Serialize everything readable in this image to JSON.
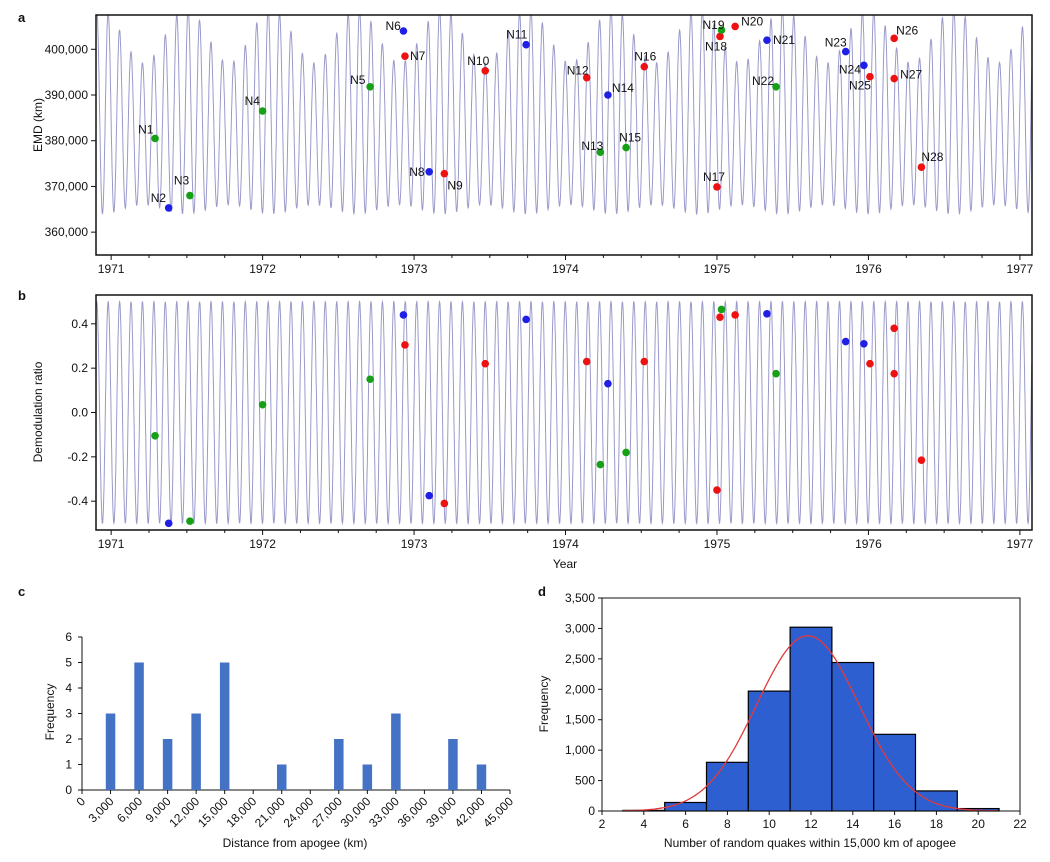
{
  "panels": {
    "a": "a",
    "b": "b",
    "c": "c",
    "d": "d"
  },
  "colors": {
    "wave": "#9a9acb",
    "blue": "#1f1fe6",
    "red": "#ee1111",
    "green": "#16a016",
    "bar": "#4472c4",
    "bar_d": "#2e5fd0",
    "fit": "#e23a3a"
  },
  "chart_data": [
    {
      "id": "a",
      "type": "scatter",
      "background": "sinusoid",
      "ylabel": "EMD (km)",
      "xlabel": "",
      "xlim": [
        1970.9,
        1977.08
      ],
      "ylim": [
        355000,
        407500
      ],
      "xticks": [
        1971,
        1972,
        1973,
        1974,
        1975,
        1976,
        1977
      ],
      "yticks": [
        360000,
        370000,
        380000,
        390000,
        400000
      ],
      "ytick_labels": [
        "360,000",
        "370,000",
        "380,000",
        "390,000",
        "400,000"
      ],
      "points": [
        {
          "label": "N1",
          "x": 1971.29,
          "y": 380500,
          "color": "green"
        },
        {
          "label": "N2",
          "x": 1971.38,
          "y": 365300,
          "color": "blue"
        },
        {
          "label": "N3",
          "x": 1971.52,
          "y": 368000,
          "color": "green"
        },
        {
          "label": "N4",
          "x": 1972.0,
          "y": 386500,
          "color": "green"
        },
        {
          "label": "N5",
          "x": 1972.71,
          "y": 391800,
          "color": "green"
        },
        {
          "label": "N6",
          "x": 1972.93,
          "y": 404000,
          "color": "blue"
        },
        {
          "label": "N7",
          "x": 1972.94,
          "y": 398500,
          "color": "red"
        },
        {
          "label": "N8",
          "x": 1973.1,
          "y": 373200,
          "color": "blue"
        },
        {
          "label": "N9",
          "x": 1973.2,
          "y": 372800,
          "color": "red"
        },
        {
          "label": "N10",
          "x": 1973.47,
          "y": 395300,
          "color": "red"
        },
        {
          "label": "N11",
          "x": 1973.74,
          "y": 401000,
          "color": "blue"
        },
        {
          "label": "N12",
          "x": 1974.14,
          "y": 393800,
          "color": "red"
        },
        {
          "label": "N13",
          "x": 1974.23,
          "y": 377500,
          "color": "green"
        },
        {
          "label": "N14",
          "x": 1974.28,
          "y": 390000,
          "color": "blue"
        },
        {
          "label": "N15",
          "x": 1974.4,
          "y": 378500,
          "color": "green"
        },
        {
          "label": "N16",
          "x": 1974.52,
          "y": 396200,
          "color": "red"
        },
        {
          "label": "N17",
          "x": 1975.0,
          "y": 369900,
          "color": "red"
        },
        {
          "label": "N18",
          "x": 1975.02,
          "y": 402800,
          "color": "red"
        },
        {
          "label": "N19",
          "x": 1975.03,
          "y": 404200,
          "color": "green"
        },
        {
          "label": "N20",
          "x": 1975.12,
          "y": 405000,
          "color": "red"
        },
        {
          "label": "N21",
          "x": 1975.33,
          "y": 402000,
          "color": "blue"
        },
        {
          "label": "N22",
          "x": 1975.39,
          "y": 391800,
          "color": "green"
        },
        {
          "label": "N23",
          "x": 1975.85,
          "y": 399500,
          "color": "blue"
        },
        {
          "label": "N24",
          "x": 1975.97,
          "y": 396500,
          "color": "blue"
        },
        {
          "label": "N25",
          "x": 1976.01,
          "y": 394000,
          "color": "red"
        },
        {
          "label": "N26",
          "x": 1976.17,
          "y": 402400,
          "color": "red"
        },
        {
          "label": "N27",
          "x": 1976.17,
          "y": 393600,
          "color": "red"
        },
        {
          "label": "N28",
          "x": 1976.35,
          "y": 374200,
          "color": "red"
        }
      ]
    },
    {
      "id": "b",
      "type": "scatter",
      "background": "sinusoid",
      "ylabel": "Demodulation ratio",
      "xlabel": "Year",
      "xlim": [
        1970.9,
        1977.08
      ],
      "ylim": [
        -0.53,
        0.53
      ],
      "xticks": [
        1971,
        1972,
        1973,
        1974,
        1975,
        1976,
        1977
      ],
      "yticks": [
        -0.4,
        -0.2,
        0.0,
        0.2,
        0.4
      ],
      "ytick_labels": [
        "-0.4",
        "-0.2",
        "0.0",
        "0.2",
        "0.4"
      ],
      "points": [
        {
          "x": 1971.29,
          "y": -0.105,
          "color": "green"
        },
        {
          "x": 1971.38,
          "y": -0.5,
          "color": "blue"
        },
        {
          "x": 1971.52,
          "y": -0.49,
          "color": "green"
        },
        {
          "x": 1972.0,
          "y": 0.035,
          "color": "green"
        },
        {
          "x": 1972.71,
          "y": 0.15,
          "color": "green"
        },
        {
          "x": 1972.93,
          "y": 0.44,
          "color": "blue"
        },
        {
          "x": 1972.94,
          "y": 0.305,
          "color": "red"
        },
        {
          "x": 1973.1,
          "y": -0.375,
          "color": "blue"
        },
        {
          "x": 1973.2,
          "y": -0.41,
          "color": "red"
        },
        {
          "x": 1973.47,
          "y": 0.22,
          "color": "red"
        },
        {
          "x": 1973.74,
          "y": 0.42,
          "color": "blue"
        },
        {
          "x": 1974.14,
          "y": 0.23,
          "color": "red"
        },
        {
          "x": 1974.23,
          "y": -0.235,
          "color": "green"
        },
        {
          "x": 1974.28,
          "y": 0.13,
          "color": "blue"
        },
        {
          "x": 1974.4,
          "y": -0.18,
          "color": "green"
        },
        {
          "x": 1974.52,
          "y": 0.23,
          "color": "red"
        },
        {
          "x": 1975.0,
          "y": -0.35,
          "color": "red"
        },
        {
          "x": 1975.02,
          "y": 0.43,
          "color": "red"
        },
        {
          "x": 1975.03,
          "y": 0.465,
          "color": "green"
        },
        {
          "x": 1975.12,
          "y": 0.44,
          "color": "red"
        },
        {
          "x": 1975.33,
          "y": 0.445,
          "color": "blue"
        },
        {
          "x": 1975.39,
          "y": 0.175,
          "color": "green"
        },
        {
          "x": 1975.85,
          "y": 0.32,
          "color": "blue"
        },
        {
          "x": 1975.97,
          "y": 0.31,
          "color": "blue"
        },
        {
          "x": 1976.01,
          "y": 0.22,
          "color": "red"
        },
        {
          "x": 1976.17,
          "y": 0.38,
          "color": "red"
        },
        {
          "x": 1976.17,
          "y": 0.175,
          "color": "red"
        },
        {
          "x": 1976.35,
          "y": -0.215,
          "color": "red"
        }
      ]
    },
    {
      "id": "c",
      "type": "bar",
      "ylabel": "Frequency",
      "xlabel": "Distance from apogee (km)",
      "xlim": [
        0,
        45000
      ],
      "ylim": [
        0,
        6
      ],
      "yticks": [
        0,
        1,
        2,
        3,
        4,
        5,
        6
      ],
      "ytick_labels": [
        "0",
        "1",
        "2",
        "3",
        "4",
        "5",
        "6"
      ],
      "xtick_values": [
        0,
        3000,
        6000,
        9000,
        12000,
        15000,
        18000,
        21000,
        24000,
        27000,
        30000,
        33000,
        36000,
        39000,
        42000,
        45000
      ],
      "xtick_labels": [
        "0",
        "3,000",
        "6,000",
        "9,000",
        "12,000",
        "15,000",
        "18,000",
        "21,000",
        "24,000",
        "27,000",
        "30,000",
        "33,000",
        "36,000",
        "39,000",
        "42,000",
        "45,000"
      ],
      "bar_x": [
        3000,
        6000,
        9000,
        12000,
        15000,
        21000,
        27000,
        30000,
        33000,
        39000,
        42000
      ],
      "values": [
        3,
        5,
        2,
        3,
        5,
        1,
        2,
        1,
        3,
        2,
        1
      ]
    },
    {
      "id": "d",
      "type": "bar",
      "ylabel": "Frequency",
      "xlabel": "Number of random quakes within 15,000 km of apogee",
      "xlim": [
        2,
        22
      ],
      "ylim": [
        0,
        3500
      ],
      "yticks": [
        0,
        500,
        1000,
        1500,
        2000,
        2500,
        3000,
        3500
      ],
      "ytick_labels": [
        "0",
        "500",
        "1,000",
        "1,500",
        "2,000",
        "2,500",
        "3,000",
        "3,500"
      ],
      "xticks": [
        2,
        4,
        6,
        8,
        10,
        12,
        14,
        16,
        18,
        20,
        22
      ],
      "xtick_labels": [
        "2",
        "4",
        "6",
        "8",
        "10",
        "12",
        "14",
        "16",
        "18",
        "20",
        "22"
      ],
      "bins": [
        [
          3,
          5
        ],
        [
          5,
          7
        ],
        [
          7,
          9
        ],
        [
          9,
          11
        ],
        [
          11,
          13
        ],
        [
          13,
          15
        ],
        [
          15,
          17
        ],
        [
          17,
          19
        ],
        [
          19,
          21
        ]
      ],
      "values": [
        10,
        140,
        800,
        1970,
        3020,
        2440,
        1260,
        330,
        40
      ],
      "fit": {
        "type": "normal",
        "mean": 11.85,
        "sd": 2.45,
        "peak": 2880
      }
    }
  ]
}
